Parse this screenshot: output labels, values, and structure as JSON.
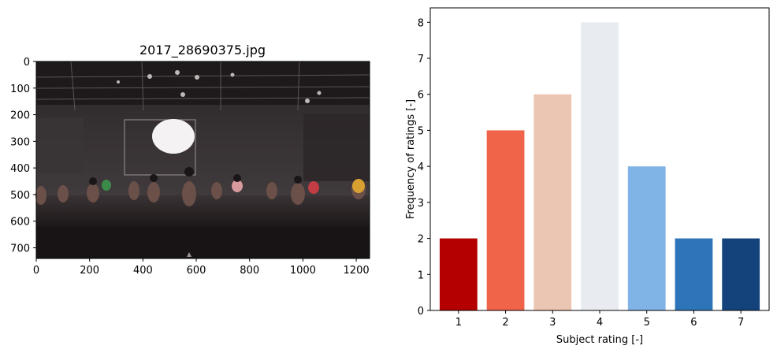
{
  "image_panel": {
    "title": "2017_28690375.jpg",
    "x_ticks": [
      0,
      200,
      400,
      600,
      800,
      1000,
      1200
    ],
    "y_ticks": [
      0,
      100,
      200,
      300,
      400,
      500,
      600,
      700
    ],
    "x_range": [
      0,
      1250
    ],
    "y_range": [
      0,
      740
    ],
    "photo_description_icon": "stage-rehearsal-photo"
  },
  "chart_data": {
    "type": "bar",
    "title": "",
    "xlabel": "Subject rating [-]",
    "ylabel": "Frequency of ratings [-]",
    "categories": [
      "1",
      "2",
      "3",
      "4",
      "5",
      "6",
      "7"
    ],
    "values": [
      2,
      5,
      6,
      8,
      4,
      2,
      2
    ],
    "colors": [
      "#b40000",
      "#f0644a",
      "#ebc6b2",
      "#e8ecf0",
      "#80b4e6",
      "#2e74b8",
      "#14437c"
    ],
    "ylim": [
      0,
      8.4
    ],
    "y_ticks": [
      0,
      1,
      2,
      3,
      4,
      5,
      6,
      7,
      8
    ],
    "grid": false
  }
}
